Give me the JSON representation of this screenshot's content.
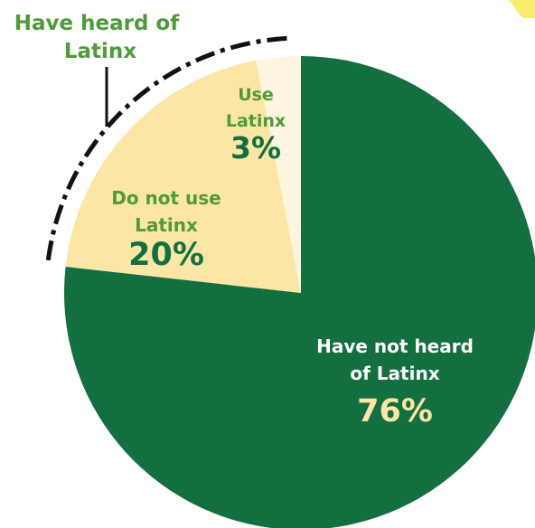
{
  "chart_data": {
    "type": "pie",
    "slices": [
      {
        "label": [
          "Have not heard",
          "of Latinx"
        ],
        "value": 76,
        "value_label": "76%",
        "color": "#136f3f",
        "text_color": "#ffffff",
        "value_color": "#fbe6a6"
      },
      {
        "label": [
          "Do not use",
          "Latinx"
        ],
        "value": 20,
        "value_label": "20%",
        "color": "#fbe6a6",
        "text_color": "#4f9a3a",
        "value_color": "#136f3f"
      },
      {
        "label": [
          "Use",
          "Latinx"
        ],
        "value": 3,
        "value_label": "3%",
        "color": "#fdf5df",
        "text_color": "#4f9a3a",
        "value_color": "#136f3f"
      }
    ],
    "group_annotation": {
      "lines": [
        "Have heard of",
        "Latinx"
      ],
      "color": "#4f9a3a",
      "covers": [
        "Do not use Latinx",
        "Use Latinx"
      ]
    },
    "corner_accent_color": "#f7ec6d"
  }
}
